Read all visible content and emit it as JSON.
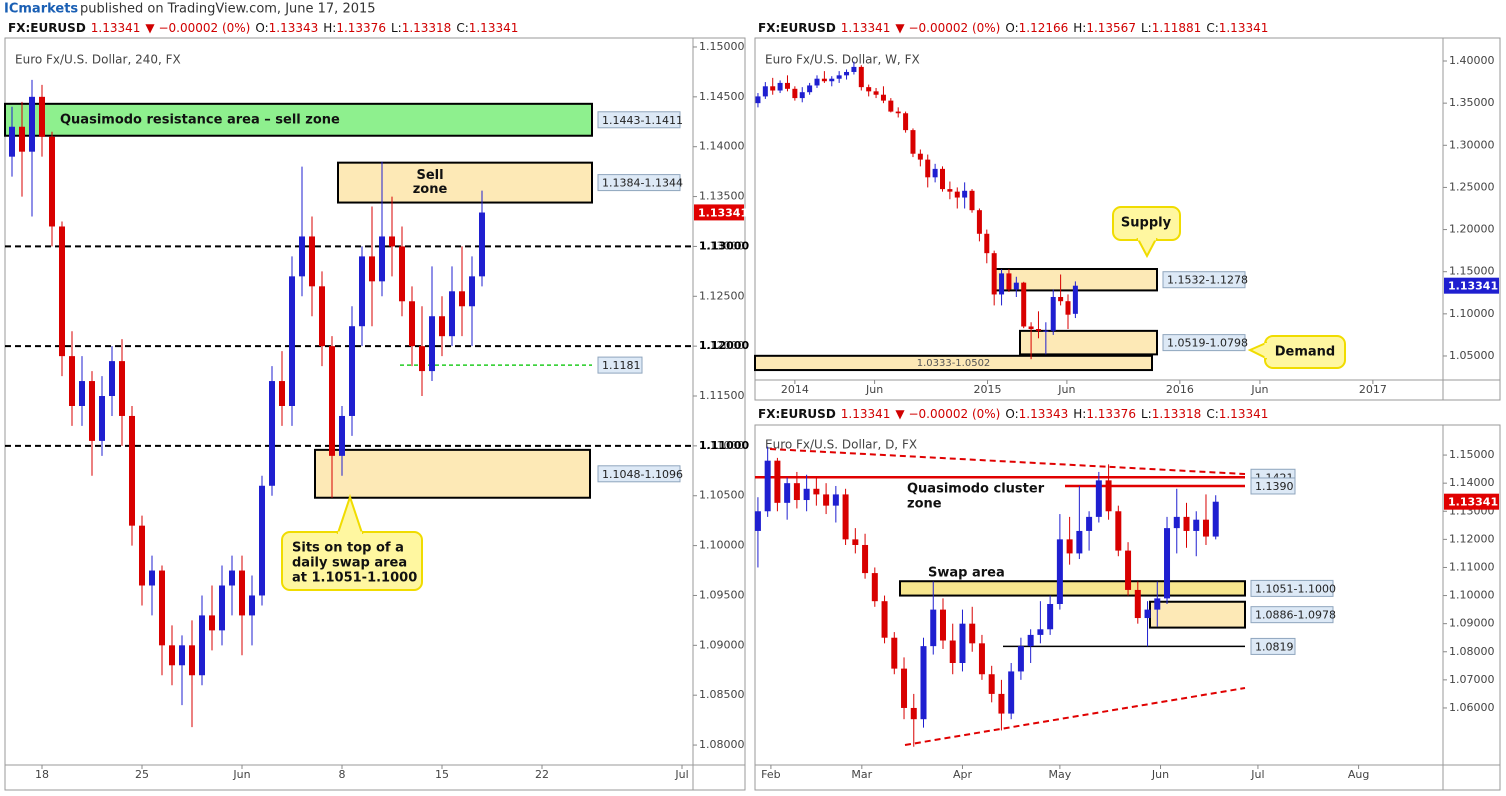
{
  "header": {
    "author": "ICmarkets",
    "text": "published on TradingView.com, June 17, 2015"
  },
  "chart_data": [
    {
      "type": "candlestick",
      "quote": [
        "FX:EURUSD",
        "1.13341",
        "▼ −0.00002 (0%)",
        "O:",
        "1.13343",
        "H:",
        "1.13376",
        "L:",
        "1.13318",
        "C:",
        "1.13341"
      ],
      "subtitle": "Euro Fx/U.S. Dollar, 240, FX",
      "up_color": "#1f1fd0",
      "down_color": "#d80000",
      "xlim": [
        -3.7,
        65.1
      ],
      "ylim": [
        1.078,
        1.1509
      ],
      "xticks": [
        {
          "value": 0,
          "label": "18"
        },
        {
          "value": 10,
          "label": "25"
        },
        {
          "value": 20,
          "label": "Jun"
        },
        {
          "value": 30,
          "label": "8"
        },
        {
          "value": 40,
          "label": "15"
        },
        {
          "value": 50,
          "label": "22"
        },
        {
          "value": 64,
          "label": "Jul"
        }
      ],
      "yticks": [
        {
          "value": 1.08,
          "label": "1.08000"
        },
        {
          "value": 1.085,
          "label": "1.08500"
        },
        {
          "value": 1.09,
          "label": "1.09000"
        },
        {
          "value": 1.095,
          "label": "1.09500"
        },
        {
          "value": 1.1,
          "label": "1.10000"
        },
        {
          "value": 1.105,
          "label": "1.10500"
        },
        {
          "value": 1.11,
          "label": "1.11000"
        },
        {
          "value": 1.115,
          "label": "1.11500"
        },
        {
          "value": 1.12,
          "label": "1.12000"
        },
        {
          "value": 1.125,
          "label": "1.12500"
        },
        {
          "value": 1.13,
          "label": "1.13000"
        },
        {
          "value": 1.135,
          "label": "1.13500"
        },
        {
          "value": 1.14,
          "label": "1.14000"
        },
        {
          "value": 1.145,
          "label": "1.14500"
        },
        {
          "value": 1.15,
          "label": "1.15000"
        }
      ],
      "x": [
        -3,
        -2,
        -1,
        0,
        1,
        2,
        3,
        4,
        5,
        6,
        7,
        8,
        9,
        10,
        11,
        12,
        13,
        14,
        15,
        16,
        17,
        18,
        19,
        20,
        21,
        22,
        23,
        24,
        25,
        26,
        27,
        28,
        29,
        30,
        31,
        32,
        33,
        34,
        35,
        36,
        37,
        38,
        39,
        40,
        41,
        42,
        43,
        44
      ],
      "open": [
        1.139,
        1.142,
        1.1395,
        1.145,
        1.141,
        1.132,
        1.119,
        1.114,
        1.1165,
        1.1105,
        1.115,
        1.1185,
        1.113,
        1.102,
        1.096,
        1.0975,
        1.09,
        1.088,
        1.09,
        1.087,
        1.093,
        1.0915,
        1.096,
        1.0975,
        1.093,
        1.095,
        1.106,
        1.1165,
        1.114,
        1.127,
        1.131,
        1.126,
        1.12,
        1.109,
        1.113,
        1.122,
        1.129,
        1.1265,
        1.131,
        1.13,
        1.1245,
        1.12,
        1.1175,
        1.123,
        1.121,
        1.1255,
        1.124,
        1.127
      ],
      "high": [
        1.144,
        1.1445,
        1.1467,
        1.1462,
        1.1415,
        1.1325,
        1.1215,
        1.119,
        1.1175,
        1.117,
        1.12,
        1.1207,
        1.114,
        1.103,
        1.099,
        1.098,
        1.092,
        1.091,
        1.0925,
        1.095,
        1.096,
        1.098,
        1.099,
        1.099,
        1.097,
        1.107,
        1.118,
        1.1195,
        1.129,
        1.138,
        1.133,
        1.1275,
        1.121,
        1.114,
        1.124,
        1.13,
        1.134,
        1.1385,
        1.135,
        1.132,
        1.126,
        1.124,
        1.128,
        1.125,
        1.128,
        1.13,
        1.129,
        1.1356
      ],
      "low": [
        1.137,
        1.135,
        1.133,
        1.139,
        1.13,
        1.117,
        1.112,
        1.112,
        1.107,
        1.109,
        1.113,
        1.11,
        1.1,
        1.094,
        1.093,
        1.087,
        1.086,
        1.084,
        1.0818,
        1.086,
        1.0895,
        1.09,
        1.093,
        1.089,
        1.09,
        1.094,
        1.105,
        1.112,
        1.112,
        1.125,
        1.123,
        1.118,
        1.1048,
        1.107,
        1.111,
        1.12,
        1.122,
        1.125,
        1.127,
        1.123,
        1.118,
        1.115,
        1.1165,
        1.119,
        1.12,
        1.121,
        1.12,
        1.126
      ],
      "close": [
        1.142,
        1.1395,
        1.145,
        1.141,
        1.132,
        1.119,
        1.114,
        1.1165,
        1.1105,
        1.115,
        1.1185,
        1.113,
        1.102,
        1.096,
        1.0975,
        1.09,
        1.088,
        1.09,
        1.087,
        1.093,
        1.0915,
        1.096,
        1.0975,
        1.093,
        1.095,
        1.106,
        1.1165,
        1.114,
        1.127,
        1.131,
        1.126,
        1.12,
        1.109,
        1.113,
        1.122,
        1.129,
        1.1265,
        1.131,
        1.13,
        1.1245,
        1.12,
        1.1175,
        1.123,
        1.121,
        1.1255,
        1.124,
        1.127,
        1.1334
      ],
      "last_price": {
        "value": 1.13341,
        "label": "1.13341"
      },
      "last_color": "#e00000",
      "zones": [
        {
          "low": 1.1411,
          "high": 1.1443,
          "label": "1.1443-1.1411",
          "color": "#8ef08e",
          "text": [
            "Quasimodo resistance area – sell zone"
          ]
        },
        {
          "low": 1.1344,
          "high": 1.1384,
          "label": "1.1384-1.1344",
          "color": "#fde9b6",
          "text": [
            "Sell",
            "zone"
          ]
        },
        {
          "low": 1.1048,
          "high": 1.1096,
          "label": "1.1048-1.1096",
          "color": "#fde9b6"
        }
      ],
      "levels": [
        {
          "value": 1.13,
          "label": "1.13000",
          "style": "dashed",
          "color": "#000000"
        },
        {
          "value": 1.12,
          "label": "1.12000",
          "style": "dashed",
          "color": "#000000"
        },
        {
          "value": 1.11,
          "label": "1.11000",
          "style": "dashed",
          "color": "#000000"
        },
        {
          "value": 1.1181,
          "label": "1.1181",
          "style": "dotted",
          "color": "#22cc22"
        }
      ],
      "callouts": [
        {
          "lines": [
            "Sits on top of a",
            "daily swap area",
            "at 1.1051-1.1000"
          ]
        }
      ]
    },
    {
      "type": "candlestick",
      "quote": [
        "FX:EURUSD",
        "1.13341",
        "▼ −0.00002 (0%)",
        "O:",
        "1.12166",
        "H:",
        "1.13567",
        "L:",
        "1.11881",
        "C:",
        "1.13341"
      ],
      "subtitle": "Euro Fx/U.S. Dollar, W, FX",
      "up_color": "#1f1fd0",
      "down_color": "#d80000",
      "xlim": [
        -10.8,
        175.6
      ],
      "ylim": [
        1.0215,
        1.4273
      ],
      "xticks": [
        {
          "value": 0,
          "label": "2014"
        },
        {
          "value": 21.6,
          "label": "Jun"
        },
        {
          "value": 52.2,
          "label": "2015"
        },
        {
          "value": 73.7,
          "label": "Jun"
        },
        {
          "value": 104.3,
          "label": "2016"
        },
        {
          "value": 126,
          "label": "Jun"
        },
        {
          "value": 156.6,
          "label": "2017"
        }
      ],
      "yticks": [
        {
          "value": 1.05,
          "label": "1.05000"
        },
        {
          "value": 1.1,
          "label": "1.10000"
        },
        {
          "value": 1.15,
          "label": "1.15000"
        },
        {
          "value": 1.2,
          "label": "1.20000"
        },
        {
          "value": 1.25,
          "label": "1.25000"
        },
        {
          "value": 1.3,
          "label": "1.30000"
        },
        {
          "value": 1.35,
          "label": "1.35000"
        },
        {
          "value": 1.4,
          "label": "1.40000"
        }
      ],
      "x": [
        -10,
        -8,
        -6,
        -4,
        -2,
        0,
        2,
        4,
        6,
        8,
        10,
        12,
        14,
        16,
        18,
        20,
        22,
        24,
        26,
        28,
        30,
        32,
        34,
        36,
        38,
        40,
        42,
        44,
        46,
        48,
        50,
        52,
        54,
        56,
        58,
        60,
        62,
        64,
        66,
        68,
        70,
        72,
        74,
        76
      ],
      "open": [
        1.35,
        1.358,
        1.37,
        1.365,
        1.374,
        1.367,
        1.356,
        1.363,
        1.371,
        1.379,
        1.376,
        1.379,
        1.383,
        1.387,
        1.393,
        1.369,
        1.364,
        1.36,
        1.353,
        1.34,
        1.338,
        1.318,
        1.29,
        1.283,
        1.262,
        1.272,
        1.248,
        1.245,
        1.238,
        1.246,
        1.223,
        1.195,
        1.172,
        1.123,
        1.148,
        1.129,
        1.137,
        1.085,
        1.082,
        1.08,
        1.08,
        1.12,
        1.115,
        1.1
      ],
      "high": [
        1.362,
        1.375,
        1.38,
        1.377,
        1.383,
        1.37,
        1.369,
        1.374,
        1.383,
        1.388,
        1.382,
        1.388,
        1.39,
        1.3993,
        1.395,
        1.372,
        1.368,
        1.37,
        1.356,
        1.345,
        1.34,
        1.32,
        1.295,
        1.289,
        1.278,
        1.275,
        1.257,
        1.25,
        1.256,
        1.248,
        1.225,
        1.2,
        1.175,
        1.153,
        1.153,
        1.144,
        1.138,
        1.09,
        1.103,
        1.09,
        1.129,
        1.1467,
        1.123,
        1.1385
      ],
      "low": [
        1.345,
        1.355,
        1.36,
        1.362,
        1.364,
        1.353,
        1.351,
        1.36,
        1.368,
        1.374,
        1.37,
        1.374,
        1.378,
        1.384,
        1.365,
        1.358,
        1.356,
        1.35,
        1.339,
        1.333,
        1.315,
        1.286,
        1.275,
        1.25,
        1.256,
        1.245,
        1.236,
        1.225,
        1.225,
        1.22,
        1.186,
        1.16,
        1.11,
        1.11,
        1.126,
        1.12,
        1.083,
        1.0462,
        1.071,
        1.052,
        1.075,
        1.11,
        1.082,
        1.095
      ],
      "close": [
        1.358,
        1.37,
        1.365,
        1.374,
        1.367,
        1.356,
        1.363,
        1.371,
        1.379,
        1.376,
        1.379,
        1.383,
        1.387,
        1.393,
        1.369,
        1.364,
        1.36,
        1.353,
        1.34,
        1.338,
        1.318,
        1.29,
        1.283,
        1.262,
        1.272,
        1.248,
        1.245,
        1.238,
        1.246,
        1.223,
        1.195,
        1.172,
        1.123,
        1.148,
        1.129,
        1.137,
        1.085,
        1.082,
        1.08,
        1.08,
        1.12,
        1.115,
        1.099,
        1.1334
      ],
      "last_price": {
        "value": 1.13341,
        "label": "1.13341"
      },
      "last_color": "#1f1fd0",
      "zones": [
        {
          "low": 1.1278,
          "high": 1.1532,
          "label": "1.1532-1.1278",
          "color": "#fde9b6"
        },
        {
          "low": 1.0519,
          "high": 1.0798,
          "label": "1.0519-1.0798",
          "color": "#fde9b6"
        },
        {
          "low": 1.0333,
          "high": 1.0502,
          "label": "1.0333-1.0502",
          "color": "#fde9b6"
        }
      ],
      "levels": [],
      "callouts": [
        {
          "lines": [
            "Supply"
          ]
        },
        {
          "lines": [
            "Demand"
          ]
        }
      ]
    },
    {
      "type": "candlestick",
      "quote": [
        "FX:EURUSD",
        "1.13341",
        "▼ −0.00002 (0%)",
        "O:",
        "1.13343",
        "H:",
        "1.13376",
        "L:",
        "1.13318",
        "C:",
        "1.13341"
      ],
      "subtitle": "Euro Fx/U.S. Dollar, D, FX",
      "up_color": "#1f1fd0",
      "down_color": "#d80000",
      "xlim": [
        26.1,
        238
      ],
      "ylim": [
        1.0397,
        1.1607
      ],
      "xticks": [
        {
          "value": 31,
          "label": "Feb"
        },
        {
          "value": 59,
          "label": "Mar"
        },
        {
          "value": 90,
          "label": "Apr"
        },
        {
          "value": 120,
          "label": "May"
        },
        {
          "value": 151,
          "label": "Jun"
        },
        {
          "value": 181,
          "label": "Jul"
        },
        {
          "value": 212,
          "label": "Aug"
        }
      ],
      "yticks": [
        {
          "value": 1.06,
          "label": "1.06000"
        },
        {
          "value": 1.07,
          "label": "1.07000"
        },
        {
          "value": 1.08,
          "label": "1.08000"
        },
        {
          "value": 1.09,
          "label": "1.09000"
        },
        {
          "value": 1.1,
          "label": "1.10000"
        },
        {
          "value": 1.11,
          "label": "1.11000"
        },
        {
          "value": 1.12,
          "label": "1.12000"
        },
        {
          "value": 1.13,
          "label": "1.13000"
        },
        {
          "value": 1.14,
          "label": "1.14000"
        },
        {
          "value": 1.15,
          "label": "1.15000"
        }
      ],
      "x": [
        27,
        30,
        33,
        36,
        39,
        42,
        45,
        48,
        51,
        54,
        57,
        60,
        63,
        66,
        69,
        72,
        75,
        78,
        81,
        84,
        87,
        90,
        93,
        96,
        99,
        102,
        105,
        108,
        111,
        114,
        117,
        120,
        123,
        126,
        129,
        132,
        135,
        138,
        141,
        144,
        147,
        150,
        153,
        156,
        159,
        162,
        165,
        168
      ],
      "open": [
        1.123,
        1.13,
        1.148,
        1.133,
        1.14,
        1.134,
        1.138,
        1.136,
        1.132,
        1.136,
        1.12,
        1.118,
        1.108,
        1.098,
        1.085,
        1.074,
        1.06,
        1.056,
        1.082,
        1.095,
        1.084,
        1.076,
        1.09,
        1.083,
        1.072,
        1.065,
        1.058,
        1.073,
        1.082,
        1.086,
        1.088,
        1.097,
        1.12,
        1.115,
        1.123,
        1.128,
        1.141,
        1.13,
        1.116,
        1.102,
        1.092,
        1.095,
        1.099,
        1.124,
        1.128,
        1.123,
        1.127,
        1.121
      ],
      "high": [
        1.135,
        1.153,
        1.149,
        1.142,
        1.144,
        1.143,
        1.142,
        1.14,
        1.139,
        1.138,
        1.124,
        1.122,
        1.11,
        1.1,
        1.087,
        1.078,
        1.065,
        1.085,
        1.105,
        1.099,
        1.09,
        1.095,
        1.096,
        1.086,
        1.075,
        1.07,
        1.076,
        1.085,
        1.088,
        1.098,
        1.1,
        1.129,
        1.128,
        1.139,
        1.13,
        1.144,
        1.1467,
        1.132,
        1.119,
        1.105,
        1.098,
        1.105,
        1.128,
        1.138,
        1.133,
        1.13,
        1.136,
        1.1357
      ],
      "low": [
        1.11,
        1.128,
        1.13,
        1.127,
        1.131,
        1.13,
        1.132,
        1.129,
        1.126,
        1.118,
        1.115,
        1.106,
        1.096,
        1.083,
        1.072,
        1.056,
        1.0462,
        1.053,
        1.079,
        1.081,
        1.072,
        1.073,
        1.08,
        1.07,
        1.062,
        1.052,
        1.056,
        1.07,
        1.076,
        1.083,
        1.086,
        1.095,
        1.111,
        1.113,
        1.116,
        1.126,
        1.127,
        1.114,
        1.1,
        1.09,
        1.0819,
        1.089,
        1.097,
        1.115,
        1.117,
        1.114,
        1.118,
        1.12
      ],
      "close": [
        1.13,
        1.148,
        1.133,
        1.14,
        1.134,
        1.138,
        1.136,
        1.132,
        1.136,
        1.12,
        1.118,
        1.108,
        1.098,
        1.085,
        1.074,
        1.06,
        1.056,
        1.082,
        1.095,
        1.084,
        1.076,
        1.09,
        1.083,
        1.072,
        1.065,
        1.058,
        1.073,
        1.082,
        1.086,
        1.088,
        1.097,
        1.12,
        1.115,
        1.123,
        1.128,
        1.141,
        1.13,
        1.116,
        1.102,
        1.092,
        1.095,
        1.099,
        1.124,
        1.128,
        1.123,
        1.127,
        1.121,
        1.1334
      ],
      "last_price": {
        "value": 1.13341,
        "label": "1.13341"
      },
      "last_color": "#e00000",
      "zones": [
        {
          "low": 1.1,
          "high": 1.1051,
          "label": "1.1051-1.1000",
          "color": "#f7e68e"
        },
        {
          "low": 1.0886,
          "high": 1.0978,
          "label": "1.0886-1.0978",
          "color": "#fde9b6"
        }
      ],
      "levels": [
        {
          "value": 1.1421,
          "label": "1.1421",
          "style": "solid",
          "color": "#e00000"
        },
        {
          "value": 1.139,
          "label": "1.1390",
          "style": "solid",
          "color": "#e00000"
        },
        {
          "value": 1.0819,
          "label": "1.0819",
          "style": "solid",
          "color": "#000000"
        }
      ],
      "callouts": [
        {
          "lines": [
            "Quasimodo cluster",
            "zone"
          ]
        },
        {
          "lines": [
            "Swap area"
          ]
        }
      ]
    }
  ]
}
